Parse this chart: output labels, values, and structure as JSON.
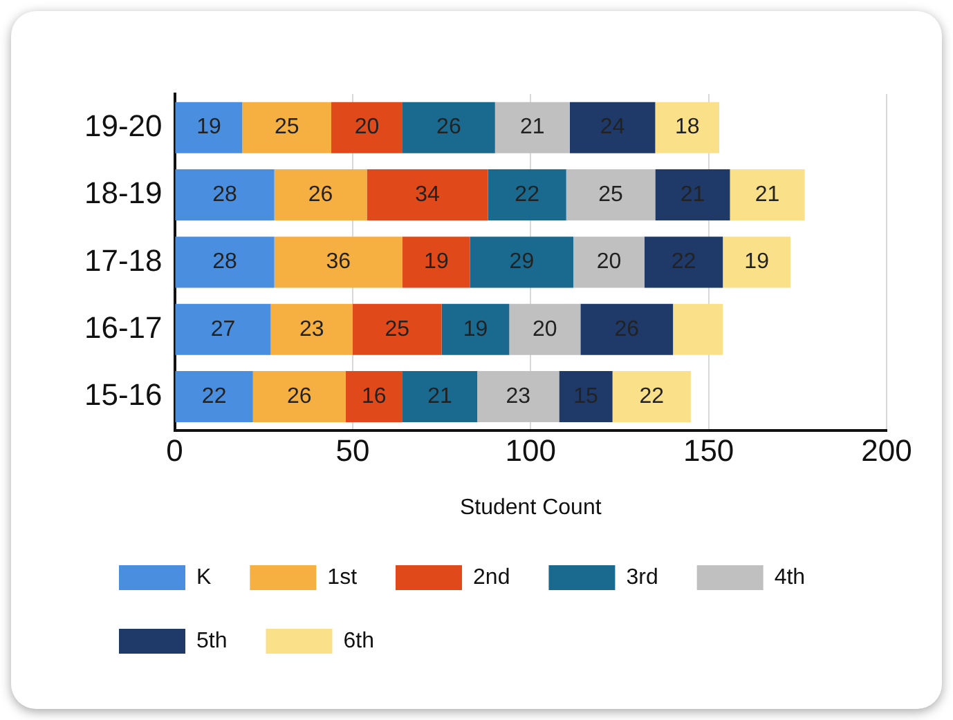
{
  "chart_data": {
    "type": "bar",
    "orientation": "horizontal",
    "stacked": true,
    "xlabel": "Student Count",
    "categories": [
      "19-20",
      "18-19",
      "17-18",
      "16-17",
      "15-16"
    ],
    "series": [
      {
        "name": "K",
        "color": "#4a8ee0",
        "values": [
          19,
          28,
          28,
          27,
          22
        ],
        "value_labels": [
          "19",
          "28",
          "28",
          "27",
          "22"
        ]
      },
      {
        "name": "1st",
        "color": "#f5b041",
        "values": [
          25,
          26,
          36,
          23,
          26
        ],
        "value_labels": [
          "25",
          "26",
          "36",
          "23",
          "26"
        ]
      },
      {
        "name": "2nd",
        "color": "#e04a1a",
        "values": [
          20,
          34,
          19,
          25,
          16
        ],
        "value_labels": [
          "20",
          "34",
          "19",
          "25",
          "16"
        ]
      },
      {
        "name": "3rd",
        "color": "#1a6a90",
        "values": [
          26,
          22,
          29,
          19,
          21
        ],
        "value_labels": [
          "26",
          "22",
          "29",
          "19",
          "21"
        ]
      },
      {
        "name": "4th",
        "color": "#c0c0c0",
        "values": [
          21,
          25,
          20,
          20,
          23
        ],
        "value_labels": [
          "21",
          "25",
          "20",
          "20",
          "23"
        ]
      },
      {
        "name": "5th",
        "color": "#1f3a68",
        "values": [
          24,
          21,
          22,
          26,
          15
        ],
        "value_labels": [
          "24",
          "21",
          "22",
          "26",
          "15"
        ]
      },
      {
        "name": "6th",
        "color": "#fbe08a",
        "values": [
          18,
          21,
          19,
          14,
          22
        ],
        "value_labels": [
          "18",
          "21",
          "19",
          null,
          "22"
        ]
      }
    ],
    "xlim": [
      0,
      200
    ],
    "xticks": [
      0,
      50,
      100,
      150,
      200
    ],
    "grid": "x",
    "legend": "bottom"
  }
}
